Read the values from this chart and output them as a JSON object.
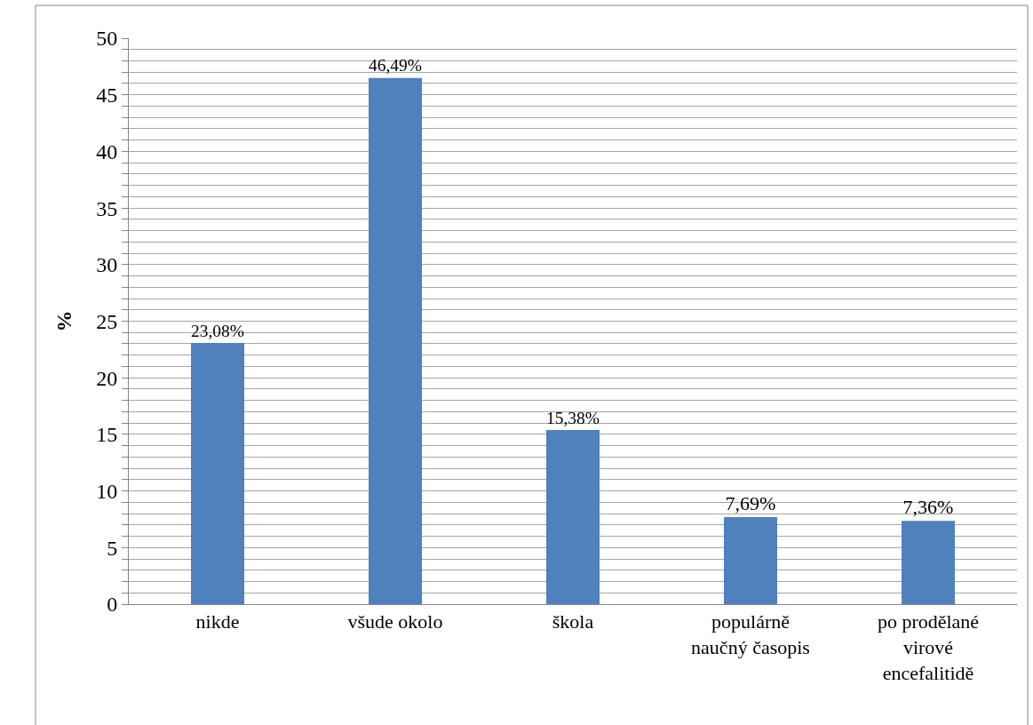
{
  "chart_data": {
    "type": "bar",
    "ylabel": "%",
    "categories": [
      "nikde",
      "všude okolo",
      "škola",
      "populárně naučný časopis",
      "po prodělané virové encefalitidě"
    ],
    "values": [
      23.08,
      46.49,
      15.38,
      7.69,
      7.36
    ],
    "value_labels": [
      "23,08%",
      "46,49%",
      "15,38%",
      "7,69%",
      "7,36%"
    ],
    "color": "#4f81bd",
    "ylim": [
      0,
      50
    ],
    "yticks": [
      0,
      {
        "value": 1,
        "label": null
      },
      {
        "value": 2,
        "label": null
      },
      {
        "value": 3,
        "label": null
      },
      {
        "value": 4,
        "label": null
      },
      5,
      {
        "value": 6,
        "label": null
      },
      {
        "value": 7,
        "label": null
      },
      {
        "value": 8,
        "label": null
      },
      {
        "value": 9,
        "label": null
      },
      10,
      {
        "value": 11,
        "label": null
      },
      {
        "value": 12,
        "label": null
      },
      {
        "value": 13,
        "label": null
      },
      {
        "value": 14,
        "label": null
      },
      15,
      {
        "value": 16,
        "label": null
      },
      {
        "value": 17,
        "label": null
      },
      {
        "value": 18,
        "label": null
      },
      {
        "value": 19,
        "label": null
      },
      20,
      {
        "value": 21,
        "label": null
      },
      {
        "value": 22,
        "label": null
      },
      {
        "value": 23,
        "label": null
      },
      {
        "value": 24,
        "label": null
      },
      25,
      {
        "value": 26,
        "label": null
      },
      {
        "value": 27,
        "label": null
      },
      {
        "value": 28,
        "label": null
      },
      {
        "value": 29,
        "label": null
      },
      30,
      {
        "value": 31,
        "label": null
      },
      {
        "value": 32,
        "label": null
      },
      {
        "value": 33,
        "label": null
      },
      {
        "value": 34,
        "label": null
      },
      35,
      {
        "value": 36,
        "label": null
      },
      {
        "value": 37,
        "label": null
      },
      {
        "value": 38,
        "label": null
      },
      {
        "value": 39,
        "label": null
      },
      40,
      {
        "value": 41,
        "label": null
      },
      {
        "value": 42,
        "label": null
      },
      {
        "value": 43,
        "label": null
      },
      {
        "value": 44,
        "label": null
      },
      45,
      {
        "value": 46,
        "label": null
      },
      {
        "value": 47,
        "label": null
      },
      {
        "value": 48,
        "label": null
      },
      {
        "value": 49,
        "label": null
      },
      50
    ],
    "grid": "y",
    "legend": false
  }
}
